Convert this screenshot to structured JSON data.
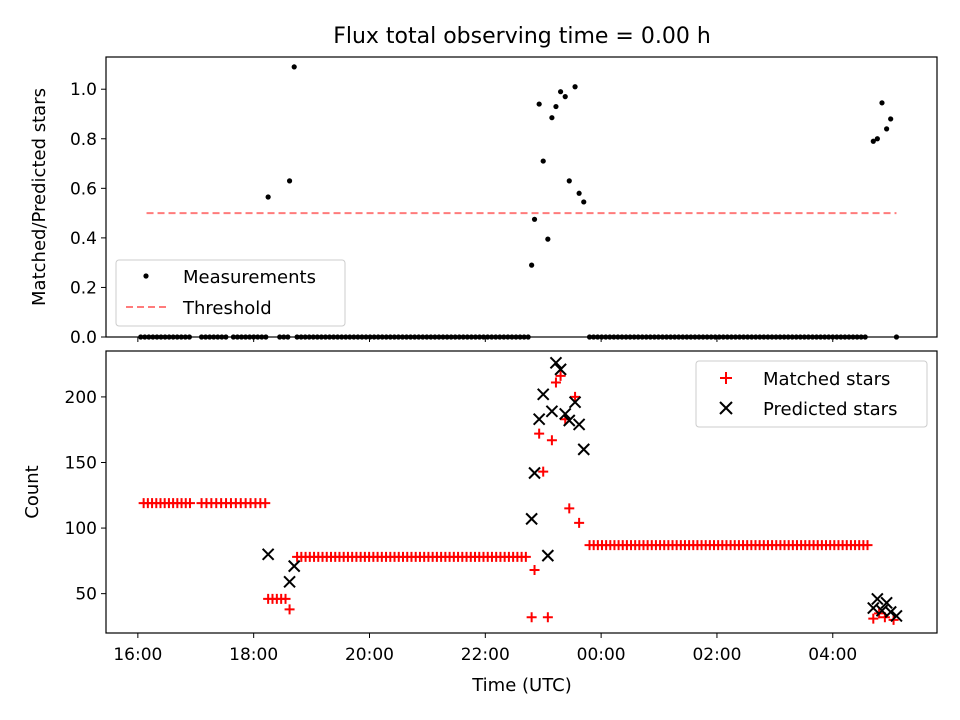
{
  "chart_data": [
    {
      "type": "scatter",
      "title": "Flux total observing time = 0.00 h",
      "xlabel": "",
      "ylabel": "Matched/Predicted stars",
      "xunit": "hours since 16:00 UTC",
      "xlim": [
        -0.55,
        13.8
      ],
      "ylim": [
        0.0,
        1.13
      ],
      "yticks": [
        0.0,
        0.2,
        0.4,
        0.6,
        0.8,
        1.0
      ],
      "ytick_labels": [
        "0.0",
        "0.2",
        "0.4",
        "0.6",
        "0.8",
        "1.0"
      ],
      "xticks": [
        0,
        2,
        4,
        6,
        8,
        10,
        12
      ],
      "legend": {
        "position": "lower-left",
        "entries": [
          "Measurements",
          "Threshold"
        ]
      },
      "series": [
        {
          "name": "Measurements",
          "color": "#000000",
          "points": [
            [
              2.25,
              0.565
            ],
            [
              2.62,
              0.63
            ],
            [
              2.7,
              1.09
            ],
            [
              6.8,
              0.29
            ],
            [
              6.85,
              0.475
            ],
            [
              6.93,
              0.94
            ],
            [
              7.0,
              0.71
            ],
            [
              7.08,
              0.395
            ],
            [
              7.15,
              0.885
            ],
            [
              7.22,
              0.93
            ],
            [
              7.3,
              0.99
            ],
            [
              7.38,
              0.97
            ],
            [
              7.45,
              0.63
            ],
            [
              7.55,
              1.01
            ],
            [
              7.62,
              0.58
            ],
            [
              7.7,
              0.545
            ],
            [
              12.7,
              0.79
            ],
            [
              12.77,
              0.8
            ],
            [
              12.85,
              0.945
            ],
            [
              12.93,
              0.84
            ],
            [
              13.0,
              0.88
            ],
            [
              13.1,
              0.0
            ]
          ],
          "zeros_x_ranges": [
            [
              0.05,
              0.9
            ],
            [
              1.1,
              1.55
            ],
            [
              1.65,
              2.25
            ],
            [
              2.45,
              2.6
            ],
            [
              2.75,
              6.75
            ],
            [
              7.8,
              12.3
            ],
            [
              12.35,
              12.6
            ]
          ]
        },
        {
          "name": "Threshold",
          "color": "#ff7b7b",
          "style": "dashed",
          "x": [
            0.15,
            13.1
          ],
          "y": [
            0.5,
            0.5
          ]
        }
      ]
    },
    {
      "type": "scatter",
      "title": "",
      "xlabel": "Time (UTC)",
      "ylabel": "Count",
      "xunit": "hours since 16:00 UTC",
      "xlim": [
        -0.55,
        13.8
      ],
      "ylim": [
        20,
        235
      ],
      "yticks": [
        50,
        100,
        150,
        200
      ],
      "ytick_labels": [
        "50",
        "100",
        "150",
        "200"
      ],
      "xticks": [
        0,
        2,
        4,
        6,
        8,
        10,
        12
      ],
      "xtick_labels": [
        "16:00",
        "18:00",
        "20:00",
        "22:00",
        "00:00",
        "02:00",
        "04:00"
      ],
      "legend": {
        "position": "upper-right",
        "entries": [
          "Matched stars",
          "Predicted stars"
        ]
      },
      "series": [
        {
          "name": "Matched stars",
          "marker": "plus",
          "color": "#ff0000",
          "segments": [
            {
              "x_range": [
                0.1,
                0.9
              ],
              "y": 119,
              "n": 12
            },
            {
              "x_range": [
                1.1,
                2.2
              ],
              "y": 119,
              "n": 14
            },
            {
              "x_range": [
                2.25,
                2.55
              ],
              "y": 46,
              "n": 5
            },
            {
              "x_range": [
                2.75,
                6.7
              ],
              "y": 78,
              "n": 55
            },
            {
              "x_range": [
                7.8,
                12.6
              ],
              "y": 87,
              "n": 68
            }
          ],
          "points": [
            [
              2.62,
              38
            ],
            [
              6.8,
              32
            ],
            [
              6.85,
              68
            ],
            [
              6.93,
              172
            ],
            [
              7.0,
              143
            ],
            [
              7.08,
              32
            ],
            [
              7.15,
              167
            ],
            [
              7.22,
              211
            ],
            [
              7.3,
              216
            ],
            [
              7.38,
              183
            ],
            [
              7.45,
              115
            ],
            [
              7.55,
              200
            ],
            [
              7.62,
              104
            ],
            [
              12.7,
              31
            ],
            [
              12.8,
              35
            ],
            [
              12.9,
              32
            ],
            [
              13.05,
              30
            ]
          ]
        },
        {
          "name": "Predicted stars",
          "marker": "x",
          "color": "#000000",
          "points": [
            [
              2.25,
              80
            ],
            [
              2.62,
              59
            ],
            [
              2.7,
              71
            ],
            [
              6.8,
              107
            ],
            [
              6.85,
              142
            ],
            [
              6.93,
              183
            ],
            [
              7.0,
              202
            ],
            [
              7.08,
              79
            ],
            [
              7.15,
              189
            ],
            [
              7.22,
              226
            ],
            [
              7.3,
              221
            ],
            [
              7.38,
              187
            ],
            [
              7.45,
              182
            ],
            [
              7.55,
              196
            ],
            [
              7.62,
              179
            ],
            [
              7.7,
              160
            ],
            [
              12.7,
              39
            ],
            [
              12.77,
              46
            ],
            [
              12.85,
              37
            ],
            [
              12.93,
              43
            ],
            [
              13.0,
              36
            ],
            [
              13.1,
              33
            ]
          ]
        }
      ]
    }
  ]
}
